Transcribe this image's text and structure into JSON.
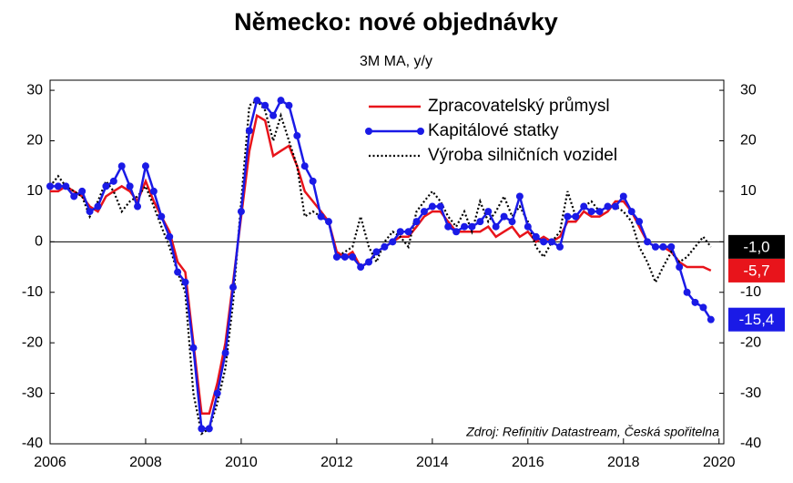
{
  "chart_data": {
    "type": "line",
    "title": "Německo: nové objednávky",
    "subtitle": "3M MA, y/y",
    "source": "Zdroj: Refinitiv Datastream, Česká spořitelna",
    "x": [
      2006,
      2006.17,
      2006.33,
      2006.5,
      2006.67,
      2006.83,
      2007,
      2007.17,
      2007.33,
      2007.5,
      2007.67,
      2007.83,
      2008,
      2008.17,
      2008.33,
      2008.5,
      2008.67,
      2008.83,
      2009,
      2009.17,
      2009.33,
      2009.5,
      2009.67,
      2009.83,
      2010,
      2010.17,
      2010.33,
      2010.5,
      2010.67,
      2010.83,
      2011,
      2011.17,
      2011.33,
      2011.5,
      2011.67,
      2011.83,
      2012,
      2012.17,
      2012.33,
      2012.5,
      2012.67,
      2012.83,
      2013,
      2013.17,
      2013.33,
      2013.5,
      2013.67,
      2013.83,
      2014,
      2014.17,
      2014.33,
      2014.5,
      2014.67,
      2014.83,
      2015,
      2015.17,
      2015.33,
      2015.5,
      2015.67,
      2015.83,
      2016,
      2016.17,
      2016.33,
      2016.5,
      2016.67,
      2016.83,
      2017,
      2017.17,
      2017.33,
      2017.5,
      2017.67,
      2017.83,
      2018,
      2018.17,
      2018.33,
      2018.5,
      2018.67,
      2018.83,
      2019,
      2019.17,
      2019.33,
      2019.5,
      2019.67,
      2019.83
    ],
    "series": [
      {
        "name": "Zpracovatelský průmysl",
        "color": "#e8141b",
        "style": "solid",
        "markers": false,
        "values": [
          10,
          10,
          11,
          10,
          9,
          7,
          6,
          9,
          10,
          11,
          10,
          8,
          12,
          8,
          5,
          2,
          -4,
          -6,
          -20,
          -34,
          -34,
          -28,
          -20,
          -8,
          5,
          18,
          25,
          24,
          17,
          18,
          19,
          15,
          10,
          8,
          6,
          4,
          -2,
          -3,
          -2,
          -5,
          -4,
          -2,
          -1,
          0,
          1,
          1,
          3,
          5,
          6,
          6,
          4,
          2,
          2,
          2,
          2,
          3,
          1,
          2,
          3,
          1,
          2,
          0,
          1,
          0,
          1,
          4,
          4,
          6,
          5,
          5,
          6,
          8,
          8,
          6,
          3,
          0,
          -1,
          -1,
          -2,
          -4,
          -5,
          -5,
          -5,
          -5.7
        ],
        "end_label": {
          "value": -5.7,
          "label": "-5,7"
        }
      },
      {
        "name": "Kapitálové statky",
        "color": "#1a1ae6",
        "style": "solid",
        "markers": true,
        "values": [
          11,
          11,
          11,
          9,
          10,
          6,
          7,
          11,
          12,
          15,
          11,
          7,
          15,
          10,
          5,
          1,
          -6,
          -8,
          -21,
          -37,
          -37,
          -30,
          -22,
          -9,
          6,
          22,
          28,
          27,
          25,
          28,
          27,
          21,
          15,
          12,
          5,
          4,
          -3,
          -3,
          -3,
          -5,
          -4,
          -2,
          -1,
          0,
          2,
          2,
          4,
          6,
          7,
          7,
          3,
          2,
          3,
          3,
          4,
          6,
          3,
          5,
          4,
          9,
          3,
          1,
          0,
          0,
          -1,
          5,
          5,
          7,
          6,
          6,
          7,
          7,
          9,
          6,
          4,
          0,
          -1,
          -1,
          -1,
          -5,
          -10,
          -12,
          -13,
          -15.4
        ],
        "end_label": {
          "value": -15.4,
          "label": "-15,4"
        }
      },
      {
        "name": "Výroba silničních vozidel",
        "color": "#000000",
        "style": "dotted",
        "markers": false,
        "values": [
          11,
          13,
          11,
          10,
          9,
          5,
          8,
          12,
          10,
          6,
          8,
          9,
          11,
          7,
          3,
          -1,
          -6,
          -10,
          -30,
          -38,
          -37,
          -32,
          -25,
          -12,
          8,
          27,
          28,
          26,
          20,
          25,
          20,
          15,
          5,
          6,
          5,
          4,
          -3,
          -2,
          -1,
          5,
          -1,
          -4,
          0,
          2,
          1,
          -1,
          6,
          8,
          10,
          8,
          5,
          3,
          6,
          2,
          8,
          4,
          6,
          9,
          5,
          7,
          4,
          -1,
          -3,
          0,
          2,
          10,
          5,
          7,
          8,
          6,
          7,
          7,
          6,
          4,
          -1,
          -4,
          -8,
          -5,
          -2,
          -4,
          -3,
          -1,
          1,
          -1.0
        ],
        "end_label": {
          "value": -1.0,
          "label": "-1,0"
        }
      }
    ],
    "xlim": [
      2006,
      2020.1
    ],
    "xticks": [
      2006,
      2008,
      2010,
      2012,
      2014,
      2016,
      2018,
      2020
    ],
    "ylim": [
      -40,
      32
    ],
    "yticks": [
      -40,
      -30,
      -20,
      -10,
      0,
      10,
      20,
      30
    ],
    "y2lim": [
      -40,
      32
    ],
    "y2ticks": [
      -40,
      -30,
      -20,
      -10,
      0,
      10,
      20,
      30
    ],
    "grid": false,
    "legend": "upper right"
  }
}
